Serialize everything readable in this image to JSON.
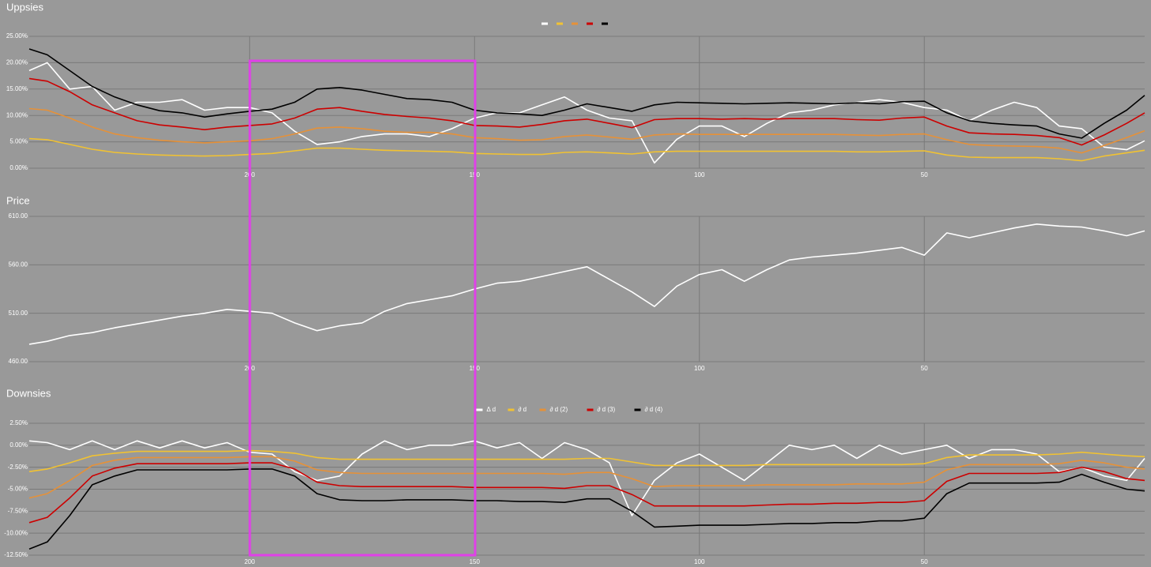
{
  "chart_data": [
    {
      "type": "line",
      "title": "Uppsies",
      "legend": "top",
      "grid": true,
      "x": [
        249,
        245,
        240,
        235,
        230,
        225,
        220,
        215,
        210,
        205,
        200,
        195,
        190,
        185,
        180,
        175,
        170,
        165,
        160,
        155,
        150,
        145,
        140,
        135,
        130,
        125,
        120,
        115,
        110,
        105,
        100,
        95,
        90,
        85,
        80,
        75,
        70,
        65,
        60,
        55,
        50,
        45,
        40,
        35,
        30,
        25,
        20,
        15,
        10,
        5,
        1
      ],
      "xlim": [
        249,
        1
      ],
      "xticks": [
        200,
        150,
        100,
        50
      ],
      "ylim": [
        0,
        25
      ],
      "yticks": [
        {
          "value": 0,
          "label": "0.00%"
        },
        {
          "value": 5,
          "label": "5.00%"
        },
        {
          "value": 10,
          "label": "10.00%"
        },
        {
          "value": 15,
          "label": "15.00%"
        },
        {
          "value": 20,
          "label": "20.00%"
        },
        {
          "value": 25,
          "label": "25.00%"
        }
      ],
      "series": [
        {
          "color": "#ffffff",
          "values": [
            18.5,
            20,
            15,
            15.5,
            11,
            12.5,
            12.5,
            13,
            11,
            11.5,
            11.5,
            10.5,
            7,
            4.5,
            5,
            6,
            6.5,
            6.5,
            6,
            7.5,
            9.5,
            10.5,
            10.5,
            12,
            13.5,
            11,
            9.5,
            9,
            1,
            5.5,
            8,
            8,
            6,
            8.5,
            10.5,
            11,
            12,
            12.5,
            13,
            12.5,
            11.5,
            11,
            9,
            11,
            12.5,
            11.5,
            8,
            7.5,
            4,
            3.5,
            5.2
          ]
        },
        {
          "color": "#f1c232",
          "values": [
            5.6,
            5.4,
            4.5,
            3.6,
            3,
            2.7,
            2.5,
            2.4,
            2.3,
            2.4,
            2.6,
            2.8,
            3.3,
            3.8,
            3.8,
            3.6,
            3.4,
            3.3,
            3.2,
            3.1,
            2.8,
            2.7,
            2.6,
            2.6,
            3,
            3.1,
            2.9,
            2.7,
            3.1,
            3.2,
            3.2,
            3.2,
            3.2,
            3.2,
            3.2,
            3.2,
            3.2,
            3.1,
            3.1,
            3.2,
            3.3,
            2.5,
            2.1,
            2,
            2,
            2,
            1.8,
            1.4,
            2.3,
            2.9,
            3.4
          ]
        },
        {
          "color": "#e69138",
          "values": [
            11.3,
            11,
            9.5,
            7.8,
            6.5,
            5.8,
            5.3,
            5,
            4.8,
            5,
            5.2,
            5.6,
            6.5,
            7.6,
            7.8,
            7.5,
            7,
            6.8,
            6.8,
            6.5,
            5.8,
            5.6,
            5.3,
            5.4,
            6,
            6.3,
            5.9,
            5.5,
            6.3,
            6.5,
            6.4,
            6.4,
            6.4,
            6.4,
            6.4,
            6.4,
            6.4,
            6.3,
            6.2,
            6.4,
            6.5,
            5.4,
            4.5,
            4.3,
            4.2,
            4.1,
            3.8,
            2.9,
            4.3,
            5.8,
            7.1
          ]
        },
        {
          "color": "#cc0000",
          "values": [
            17,
            16.5,
            14.5,
            12,
            10.5,
            9,
            8.2,
            7.8,
            7.3,
            7.8,
            8.1,
            8.4,
            9.5,
            11.2,
            11.5,
            10.8,
            10.2,
            9.8,
            9.5,
            9,
            8.1,
            8,
            7.8,
            8.3,
            9,
            9.3,
            8.5,
            7.7,
            9.2,
            9.4,
            9.4,
            9.3,
            9.4,
            9.3,
            9.4,
            9.4,
            9.4,
            9.2,
            9.1,
            9.5,
            9.7,
            8,
            6.7,
            6.5,
            6.4,
            6.2,
            5.8,
            4.4,
            6.3,
            8.5,
            10.5
          ]
        },
        {
          "color": "#000000",
          "values": [
            22.6,
            21.5,
            18.5,
            15.5,
            13.5,
            12,
            10.9,
            10.5,
            9.7,
            10.3,
            10.8,
            11.2,
            12.5,
            15,
            15.3,
            14.8,
            14,
            13.2,
            13,
            12.5,
            11,
            10.5,
            10.3,
            10,
            11,
            12.2,
            11.5,
            10.8,
            12,
            12.5,
            12.4,
            12.3,
            12.2,
            12.3,
            12.4,
            12.3,
            12.2,
            12.4,
            12.2,
            12.6,
            12.7,
            10.5,
            9,
            8.5,
            8.2,
            8,
            6.5,
            5.7,
            8.5,
            11,
            13.8
          ]
        }
      ]
    },
    {
      "type": "line",
      "title": "Price",
      "grid": true,
      "x": [
        249,
        245,
        240,
        235,
        230,
        225,
        220,
        215,
        210,
        205,
        200,
        195,
        190,
        185,
        180,
        175,
        170,
        165,
        160,
        155,
        150,
        145,
        140,
        135,
        130,
        125,
        120,
        115,
        110,
        105,
        100,
        95,
        90,
        85,
        80,
        75,
        70,
        65,
        60,
        55,
        50,
        45,
        40,
        35,
        30,
        25,
        20,
        15,
        10,
        5,
        1
      ],
      "xlim": [
        249,
        1
      ],
      "xticks": [
        200,
        150,
        100,
        50
      ],
      "ylim": [
        460,
        610
      ],
      "yticks": [
        {
          "value": 460,
          "label": "460.00"
        },
        {
          "value": 510,
          "label": "510.00"
        },
        {
          "value": 560,
          "label": "560.00"
        },
        {
          "value": 610,
          "label": "610.00"
        }
      ],
      "series": [
        {
          "color": "#ffffff",
          "values": [
            478,
            481,
            487,
            490,
            495,
            499,
            503,
            507,
            510,
            514,
            512,
            510,
            500,
            492,
            497,
            500,
            512,
            520,
            524,
            528,
            535,
            541,
            543,
            548,
            553,
            558,
            545,
            532,
            517,
            538,
            550,
            555,
            543,
            555,
            565,
            568,
            570,
            572,
            575,
            578,
            570,
            593,
            588,
            593,
            598,
            602,
            600,
            599,
            595,
            590,
            595
          ]
        }
      ]
    },
    {
      "type": "line",
      "title": "Downsies",
      "legend": "top",
      "grid": true,
      "x": [
        249,
        245,
        240,
        235,
        230,
        225,
        220,
        215,
        210,
        205,
        200,
        195,
        190,
        185,
        180,
        175,
        170,
        165,
        160,
        155,
        150,
        145,
        140,
        135,
        130,
        125,
        120,
        115,
        110,
        105,
        100,
        95,
        90,
        85,
        80,
        75,
        70,
        65,
        60,
        55,
        50,
        45,
        40,
        35,
        30,
        25,
        20,
        15,
        10,
        5,
        1
      ],
      "xlim": [
        249,
        1
      ],
      "xticks": [
        200,
        150,
        100,
        50
      ],
      "ylim": [
        -12.5,
        2.5
      ],
      "yticks": [
        {
          "value": -12.5,
          "label": "-12.50%"
        },
        {
          "value": -10,
          "label": "-10.00%"
        },
        {
          "value": -7.5,
          "label": "-7.50%"
        },
        {
          "value": -5,
          "label": "-5.00%"
        },
        {
          "value": -2.5,
          "label": "-2.50%"
        },
        {
          "value": 0,
          "label": "0.00%"
        },
        {
          "value": 2.5,
          "label": "2.50%"
        }
      ],
      "series": [
        {
          "name": "Δ d",
          "color": "#ffffff",
          "values": [
            0.5,
            0.3,
            -0.5,
            0.5,
            -0.5,
            0.5,
            -0.3,
            0.5,
            -0.3,
            0.3,
            -0.8,
            -1,
            -3,
            -4,
            -3.5,
            -1,
            0.5,
            -0.5,
            0,
            0,
            0.5,
            -0.3,
            0.3,
            -1.5,
            0.3,
            -0.5,
            -2,
            -8,
            -4,
            -2,
            -1,
            -2.5,
            -4,
            -2,
            0,
            -0.5,
            0,
            -1.5,
            0,
            -1,
            -0.5,
            0,
            -1.5,
            -0.5,
            -0.5,
            -1,
            -3,
            -2.5,
            -3.5,
            -4,
            -1.5
          ]
        },
        {
          "name": "∂ d",
          "color": "#f1c232",
          "values": [
            -3,
            -2.7,
            -2,
            -1.2,
            -0.9,
            -0.7,
            -0.7,
            -0.7,
            -0.7,
            -0.7,
            -0.6,
            -0.7,
            -0.9,
            -1.4,
            -1.6,
            -1.6,
            -1.6,
            -1.6,
            -1.6,
            -1.6,
            -1.6,
            -1.6,
            -1.6,
            -1.6,
            -1.6,
            -1.5,
            -1.5,
            -1.9,
            -2.3,
            -2.3,
            -2.3,
            -2.3,
            -2.3,
            -2.2,
            -2.2,
            -2.2,
            -2.2,
            -2.2,
            -2.2,
            -2.2,
            -2.1,
            -1.4,
            -1.1,
            -1.1,
            -1.1,
            -1.1,
            -1,
            -0.8,
            -1,
            -1.2,
            -1.3
          ]
        },
        {
          "name": "∂ d (2)",
          "color": "#e69138",
          "values": [
            -6,
            -5.5,
            -4,
            -2.3,
            -1.7,
            -1.4,
            -1.4,
            -1.4,
            -1.4,
            -1.4,
            -1.3,
            -1.3,
            -1.8,
            -2.8,
            -3.1,
            -3.2,
            -3.2,
            -3.2,
            -3.2,
            -3.2,
            -3.2,
            -3.2,
            -3.2,
            -3.2,
            -3.3,
            -3.1,
            -3.1,
            -3.8,
            -4.7,
            -4.6,
            -4.6,
            -4.6,
            -4.6,
            -4.5,
            -4.5,
            -4.5,
            -4.5,
            -4.4,
            -4.4,
            -4.4,
            -4.2,
            -2.8,
            -2.2,
            -2.2,
            -2.2,
            -2.2,
            -2.1,
            -1.7,
            -2,
            -2.5,
            -2.7
          ]
        },
        {
          "name": "∂ d (3)",
          "color": "#cc0000",
          "values": [
            -8.8,
            -8.2,
            -6,
            -3.5,
            -2.6,
            -2.1,
            -2.1,
            -2.1,
            -2.1,
            -2.1,
            -2,
            -2,
            -2.7,
            -4.2,
            -4.6,
            -4.7,
            -4.7,
            -4.7,
            -4.7,
            -4.7,
            -4.8,
            -4.8,
            -4.8,
            -4.8,
            -4.9,
            -4.6,
            -4.6,
            -5.6,
            -6.9,
            -6.9,
            -6.9,
            -6.9,
            -6.9,
            -6.8,
            -6.7,
            -6.7,
            -6.6,
            -6.6,
            -6.5,
            -6.5,
            -6.3,
            -4.1,
            -3.2,
            -3.2,
            -3.2,
            -3.2,
            -3.1,
            -2.5,
            -3,
            -3.8,
            -4
          ]
        },
        {
          "name": "∂ d (4)",
          "color": "#000000",
          "values": [
            -11.8,
            -11,
            -8,
            -4.5,
            -3.5,
            -2.8,
            -2.8,
            -2.8,
            -2.8,
            -2.8,
            -2.7,
            -2.7,
            -3.5,
            -5.5,
            -6.2,
            -6.3,
            -6.3,
            -6.2,
            -6.2,
            -6.2,
            -6.3,
            -6.3,
            -6.4,
            -6.4,
            -6.5,
            -6.1,
            -6.1,
            -7.5,
            -9.3,
            -9.2,
            -9.1,
            -9.1,
            -9.1,
            -9,
            -8.9,
            -8.9,
            -8.8,
            -8.8,
            -8.6,
            -8.6,
            -8.3,
            -5.5,
            -4.3,
            -4.3,
            -4.3,
            -4.3,
            -4.2,
            -3.3,
            -4.2,
            -5,
            -5.2
          ]
        }
      ]
    }
  ]
}
